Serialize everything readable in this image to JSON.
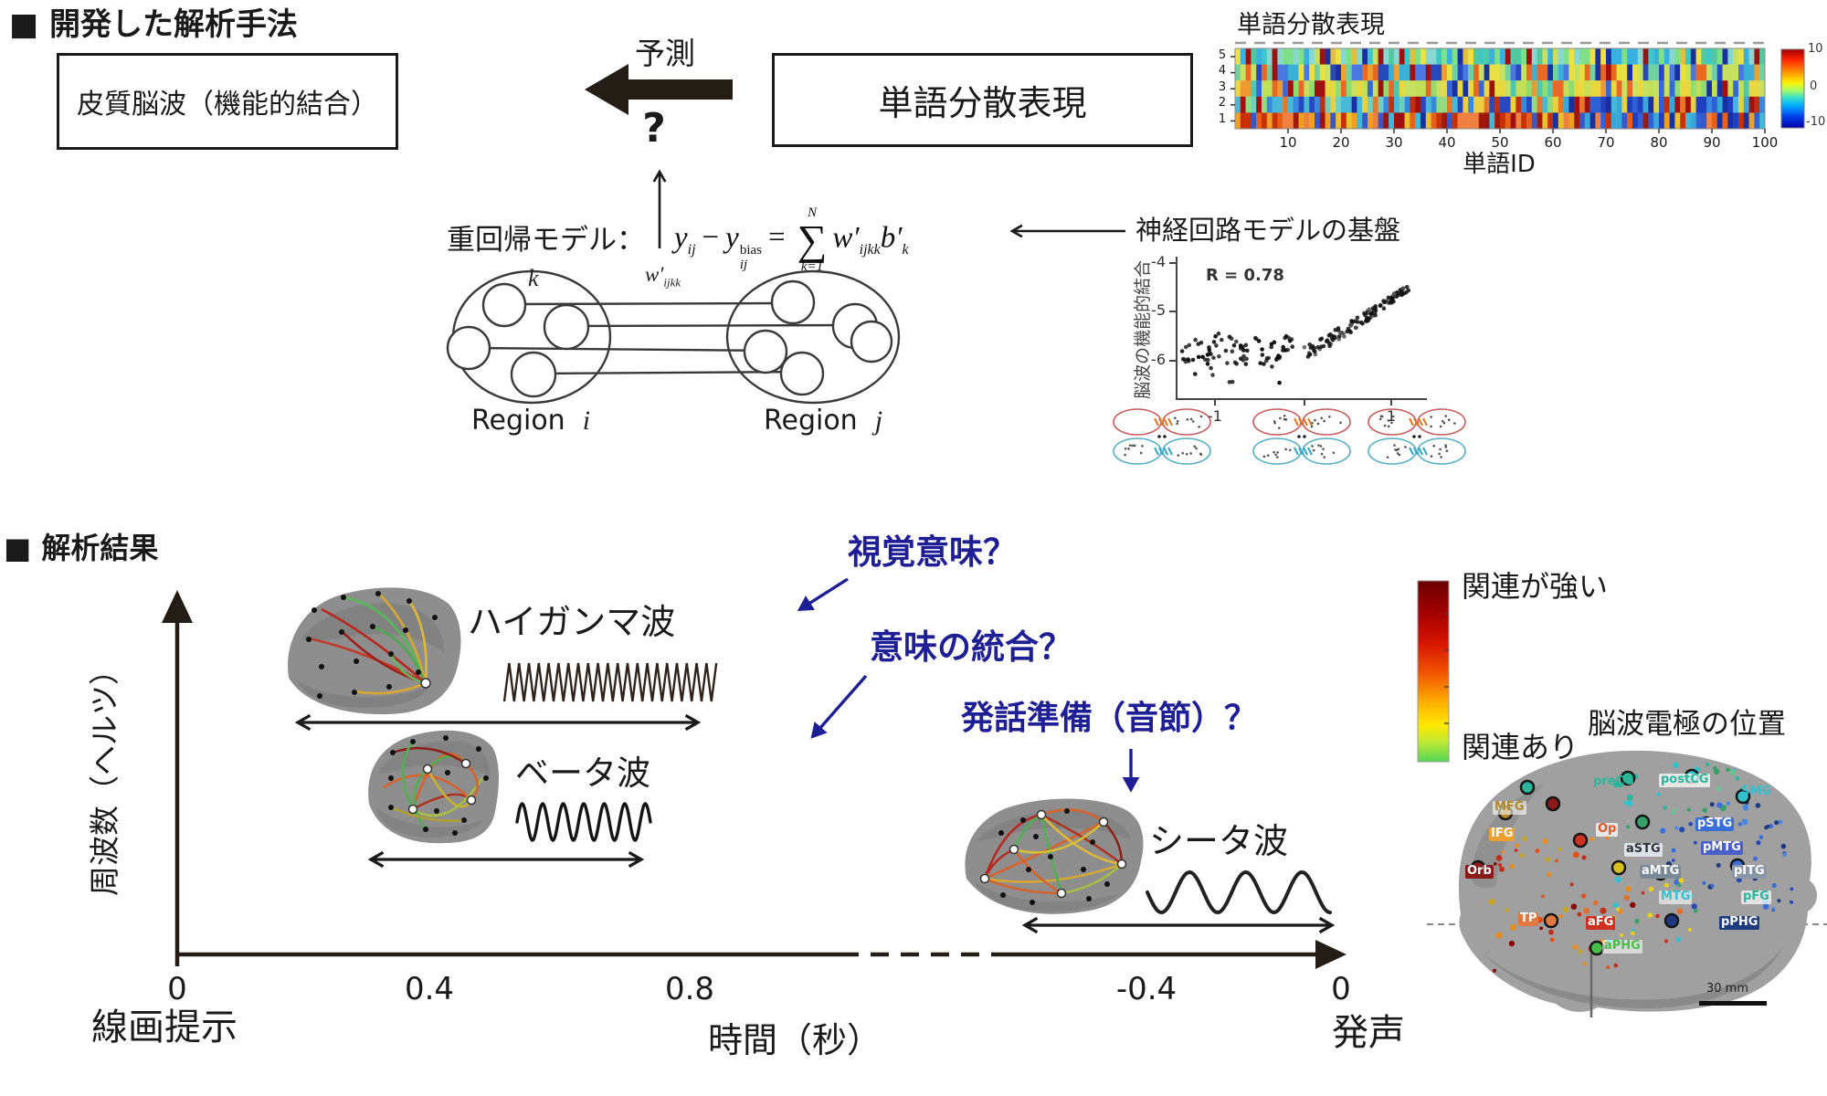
{
  "colors": {
    "annotation_blue": "#1e1e96",
    "axis_dark": "#241d16",
    "box_border": "#1a1a1a",
    "heat_pos": "#c00000",
    "heat_neg": "#0000aa",
    "relation_strong": "#6b0000",
    "relation_weak": "#52d852"
  },
  "section1": {
    "title": "■ 開発した解析手法",
    "box_left": "皮質脳波（機能的結合）",
    "predict_label": "予測",
    "question_mark": "?",
    "box_right": "単語分散表現",
    "model_label": "重回帰モデル：",
    "formula": {
      "y": "y",
      "ij": "ij",
      "minus": "−",
      "bias": "bias",
      "eq": "=",
      "sigma": "∑",
      "n": "N",
      "keq": "k=1",
      "w": "w′",
      "wsub": "ijkk",
      "b": "b′",
      "bsub": "k"
    },
    "region": {
      "k": "k",
      "w": "w′",
      "wsub": "ijkk",
      "region": "Region",
      "i": "i",
      "j": "j"
    },
    "basis_caption": "神経回路モデルの基盤",
    "embedding": {
      "title": "単語分散表現",
      "xlabel": "単語ID",
      "xticks": [
        "10",
        "20",
        "30",
        "40",
        "50",
        "60",
        "70",
        "80",
        "90",
        "100"
      ],
      "yticks": [
        "5",
        "4",
        "3",
        "2",
        "1"
      ],
      "colorbar_ticks": [
        "10",
        "0",
        "-10"
      ]
    },
    "scatter": {
      "ylabel": "脳波の機能的結合",
      "r_label": "R = 0.78",
      "yticks": [
        "-4",
        "-5",
        "-6"
      ],
      "xticks": [
        "-1",
        "1"
      ]
    }
  },
  "section2": {
    "title": "■ 解析結果",
    "ylabel": "周波数（ヘルツ）",
    "xlabel": "時間（秒）",
    "xticks": [
      "0",
      "0.4",
      "0.8",
      "-0.4",
      "0"
    ],
    "origin_event": "線画提示",
    "end_event": "発声",
    "waves": {
      "gamma": "ハイガンマ波",
      "beta": "ベータ波",
      "theta": "シータ波"
    },
    "annotations": {
      "visual": "視覚意味？",
      "integration": "意味の統合？",
      "speech": "発話準備（音節）？"
    },
    "legend": {
      "strong": "関連が強い",
      "present": "関連あり",
      "map_title": "脳波電極の位置",
      "scale_label": "30 mm",
      "electrodes": [
        {
          "label": "preCG",
          "color": "#2bb59a",
          "bg": ""
        },
        {
          "label": "postCG",
          "color": "#2bb59a",
          "bg": "rgba(255,255,255,0.75)"
        },
        {
          "label": "SMG",
          "color": "#35c0d0",
          "bg": ""
        },
        {
          "label": "MFG",
          "color": "#b08828",
          "bg": "rgba(255,255,255,0.6)"
        },
        {
          "label": "IFG",
          "color": "#ffffff",
          "bg": "#e8a030"
        },
        {
          "label": "Op",
          "color": "#e05828",
          "bg": "rgba(255,255,255,0.75)"
        },
        {
          "label": "pSTG",
          "color": "#ffffff",
          "bg": "#3a6fd8"
        },
        {
          "label": "pMTG",
          "color": "#ffffff",
          "bg": "#4a5fc8"
        },
        {
          "label": "aSTG",
          "color": "#333333",
          "bg": "#dce3ea"
        },
        {
          "label": "aMTG",
          "color": "#ffffff",
          "bg": "#7a8a99"
        },
        {
          "label": "pITG",
          "color": "#ffffff",
          "bg": "#8a97a8"
        },
        {
          "label": "MTG",
          "color": "#35c0d0",
          "bg": "rgba(255,255,255,0.6)"
        },
        {
          "label": "pFG",
          "color": "#2bb59a",
          "bg": "rgba(255,255,255,0.7)"
        },
        {
          "label": "pPHG",
          "color": "#ffffff",
          "bg": "#203a80"
        },
        {
          "label": "aPHG",
          "color": "#48c048",
          "bg": "rgba(255,255,255,0.6)"
        },
        {
          "label": "aFG",
          "color": "#ffffff",
          "bg": "#d03020"
        },
        {
          "label": "TP",
          "color": "#ffffff",
          "bg": "#e07840"
        },
        {
          "label": "Orb",
          "color": "#ffffff",
          "bg": "#8b1a1a"
        }
      ]
    }
  }
}
